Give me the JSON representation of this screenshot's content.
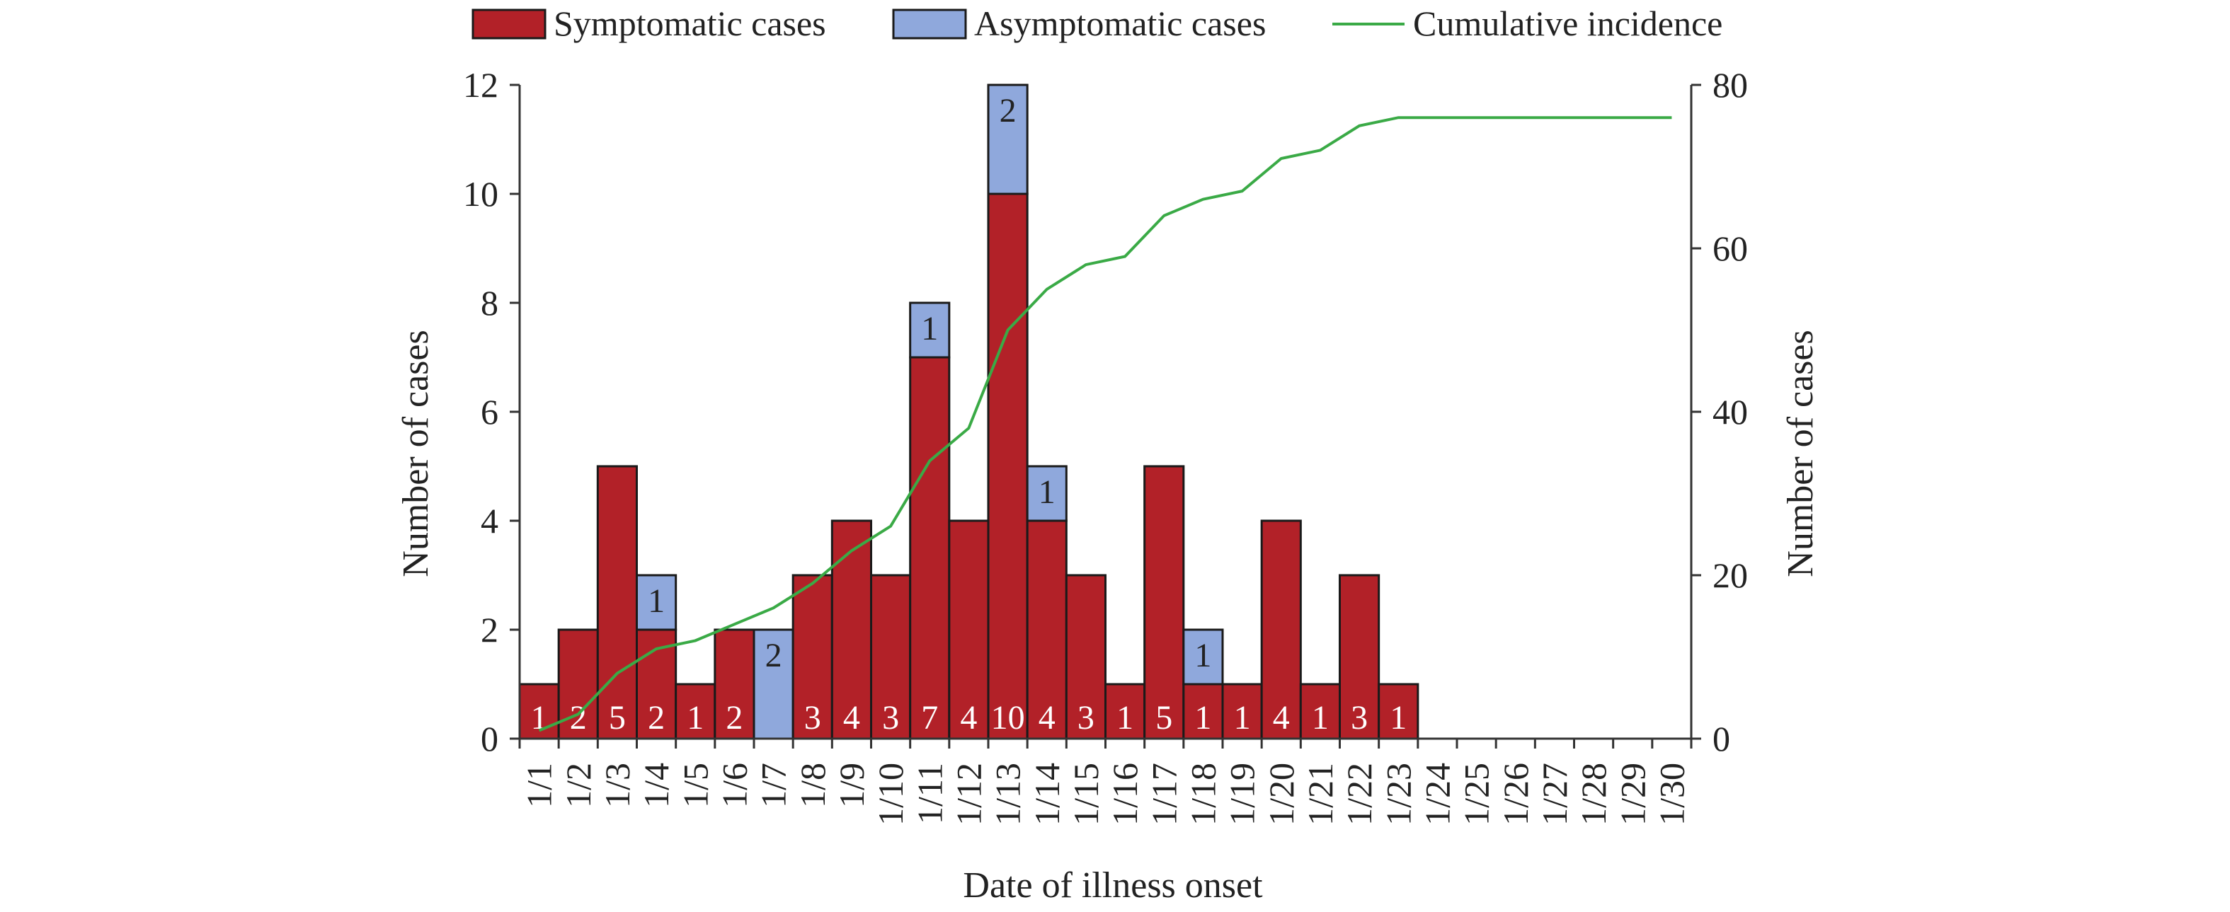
{
  "chart_data": {
    "type": "bar",
    "stacked": true,
    "categories": [
      "1/1",
      "1/2",
      "1/3",
      "1/4",
      "1/5",
      "1/6",
      "1/7",
      "1/8",
      "1/9",
      "1/10",
      "1/11",
      "1/12",
      "1/13",
      "1/14",
      "1/15",
      "1/16",
      "1/17",
      "1/18",
      "1/19",
      "1/20",
      "1/21",
      "1/22",
      "1/23",
      "1/24",
      "1/25",
      "1/26",
      "1/27",
      "1/28",
      "1/29",
      "1/30"
    ],
    "series": [
      {
        "name": "Symptomatic cases",
        "kind": "bar",
        "axis": "left",
        "color": "#b22128",
        "values": [
          1,
          2,
          5,
          2,
          1,
          2,
          0,
          3,
          4,
          3,
          7,
          4,
          10,
          4,
          3,
          1,
          5,
          1,
          1,
          4,
          1,
          3,
          1,
          0,
          0,
          0,
          0,
          0,
          0,
          0
        ]
      },
      {
        "name": "Asymptomatic cases",
        "kind": "bar",
        "axis": "left",
        "color": "#8fa8dc",
        "values": [
          0,
          0,
          0,
          1,
          0,
          0,
          2,
          0,
          0,
          0,
          1,
          0,
          2,
          1,
          0,
          0,
          0,
          1,
          0,
          0,
          0,
          0,
          0,
          0,
          0,
          0,
          0,
          0,
          0,
          0
        ]
      },
      {
        "name": "Cumulative incidence",
        "kind": "line",
        "axis": "right",
        "color": "#3aaa46",
        "values": [
          1,
          3,
          8,
          11,
          12,
          14,
          16,
          19,
          23,
          26,
          34,
          38,
          50,
          55,
          58,
          59,
          64,
          66,
          67,
          71,
          72,
          75,
          76,
          76,
          76,
          76,
          76,
          76,
          76,
          76
        ]
      }
    ],
    "xlabel": "Date of illness onset",
    "ylabel": "Number of cases",
    "y2label": "Number of cases",
    "ylim": [
      0,
      12
    ],
    "yticks": [
      "0",
      "2",
      "4",
      "6",
      "8",
      "10",
      "12"
    ],
    "y2lim": [
      0,
      80
    ],
    "y2ticks": [
      "0",
      "20",
      "40",
      "60",
      "80"
    ],
    "grid": false,
    "legend_position": "top"
  }
}
